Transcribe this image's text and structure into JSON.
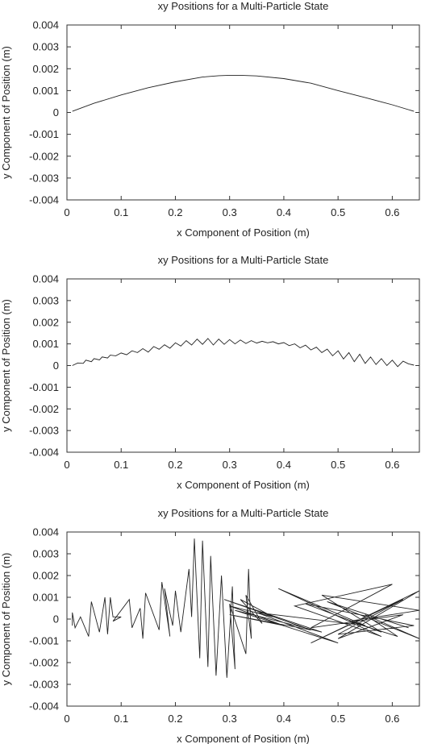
{
  "chart_data": [
    {
      "type": "line",
      "title": "xy Positions for a Multi-Particle State",
      "xlabel": "x Component of Position (m)",
      "ylabel": "y Component of Position (m)",
      "xlim": [
        0,
        0.65
      ],
      "ylim": [
        -0.004,
        0.004
      ],
      "xticks": [
        "0",
        "0.1",
        "0.2",
        "0.3",
        "0.4",
        "0.5",
        "0.6"
      ],
      "yticks": [
        "0.004",
        "0.003",
        "0.002",
        "0.001",
        "0",
        "-0.001",
        "-0.002",
        "-0.003",
        "-0.004"
      ],
      "grid": false,
      "series": [
        {
          "x": [
            0.01,
            0.05,
            0.1,
            0.15,
            0.2,
            0.25,
            0.28,
            0.3,
            0.32,
            0.35,
            0.4,
            0.45,
            0.5,
            0.55,
            0.6,
            0.64
          ],
          "y": [
            5e-05,
            0.00042,
            0.0008,
            0.00113,
            0.0014,
            0.00162,
            0.00168,
            0.0017,
            0.0017,
            0.00167,
            0.00155,
            0.00134,
            0.001,
            0.00068,
            0.00035,
            5e-05
          ]
        }
      ]
    },
    {
      "type": "line",
      "title": "xy Positions for a Multi-Particle State",
      "xlabel": "x Component of Position (m)",
      "ylabel": "y Component of Position (m)",
      "xlim": [
        0,
        0.65
      ],
      "ylim": [
        -0.004,
        0.004
      ],
      "xticks": [
        "0",
        "0.1",
        "0.2",
        "0.3",
        "0.4",
        "0.5",
        "0.6"
      ],
      "yticks": [
        "0.004",
        "0.003",
        "0.002",
        "0.001",
        "0",
        "-0.001",
        "-0.002",
        "-0.003",
        "-0.004"
      ],
      "grid": false,
      "series": [
        {
          "x": [
            0.01,
            0.02,
            0.03,
            0.035,
            0.045,
            0.05,
            0.06,
            0.065,
            0.075,
            0.08,
            0.09,
            0.1,
            0.11,
            0.12,
            0.13,
            0.14,
            0.15,
            0.16,
            0.17,
            0.18,
            0.19,
            0.2,
            0.21,
            0.22,
            0.23,
            0.24,
            0.25,
            0.26,
            0.27,
            0.28,
            0.29,
            0.3,
            0.31,
            0.32,
            0.33,
            0.34,
            0.35,
            0.36,
            0.37,
            0.38,
            0.39,
            0.4,
            0.41,
            0.42,
            0.43,
            0.44,
            0.45,
            0.46,
            0.47,
            0.48,
            0.49,
            0.5,
            0.51,
            0.52,
            0.53,
            0.54,
            0.55,
            0.56,
            0.57,
            0.58,
            0.59,
            0.6,
            0.61,
            0.62,
            0.63,
            0.64
          ],
          "y": [
            0.0,
            0.00012,
            0.0001,
            0.00025,
            0.00018,
            0.00032,
            0.00026,
            0.0004,
            0.00035,
            0.00048,
            0.00045,
            0.00058,
            0.0005,
            0.00068,
            0.0006,
            0.00078,
            0.00062,
            0.00088,
            0.00075,
            0.00096,
            0.0008,
            0.00105,
            0.0009,
            0.00115,
            0.00095,
            0.00122,
            0.00098,
            0.00125,
            0.00095,
            0.00122,
            0.00098,
            0.0012,
            0.001,
            0.00118,
            0.00102,
            0.00115,
            0.00104,
            0.00112,
            0.00105,
            0.0011,
            0.001,
            0.00106,
            0.00092,
            0.001,
            0.00082,
            0.00094,
            0.00072,
            0.00085,
            0.0006,
            0.00076,
            0.00045,
            0.00068,
            0.0003,
            0.0006,
            0.00018,
            0.00052,
            0.0001,
            0.0004,
            5e-05,
            0.00032,
            0.0,
            0.00025,
            -5e-05,
            0.0002,
            8e-05,
            2e-05
          ]
        }
      ]
    },
    {
      "type": "line",
      "title": "xy Positions for a Multi-Particle State",
      "xlabel": "x Component of Position (m)",
      "ylabel": "y Component of Position (m)",
      "xlim": [
        0,
        0.65
      ],
      "ylim": [
        -0.004,
        0.004
      ],
      "xticks": [
        "0",
        "0.1",
        "0.2",
        "0.3",
        "0.4",
        "0.5",
        "0.6"
      ],
      "yticks": [
        "0.004",
        "0.003",
        "0.002",
        "0.001",
        "0",
        "-0.001",
        "-0.002",
        "-0.003",
        "-0.004"
      ],
      "grid": false,
      "series": [
        {
          "x": [
            0.01,
            0.01,
            0.015,
            0.025,
            0.04,
            0.045,
            0.06,
            0.07,
            0.075,
            0.08,
            0.085,
            0.1,
            0.085,
            0.115,
            0.12,
            0.135,
            0.14,
            0.145,
            0.17,
            0.175,
            0.19,
            0.18,
            0.195,
            0.2,
            0.21,
            0.225,
            0.23,
            0.235,
            0.245,
            0.25,
            0.26,
            0.265,
            0.275,
            0.285,
            0.295,
            0.305,
            0.31,
            0.3,
            0.33,
            0.335,
            0.34,
            0.33,
            0.36,
            0.32,
            0.38,
            0.3,
            0.4,
            0.3,
            0.45,
            0.29,
            0.47,
            0.31,
            0.5,
            0.35,
            0.55,
            0.39,
            0.58,
            0.42,
            0.6,
            0.45,
            0.62,
            0.5,
            0.65,
            0.45,
            0.62,
            0.5,
            0.64,
            0.44,
            0.58,
            0.47,
            0.65,
            0.52,
            0.61,
            0.55,
            0.65,
            0.48,
            0.63
          ],
          "y": [
            -0.0003,
            0.0003,
            -0.0004,
            0.0001,
            -0.0008,
            0.0008,
            -0.0006,
            0.001,
            -0.0007,
            0.001,
            0.0001,
            0.0001,
            -0.0001,
            0.0009,
            -0.0004,
            0.0005,
            -0.0009,
            0.0012,
            -0.0005,
            0.0017,
            -0.0008,
            0.0014,
            -0.0003,
            0.0013,
            -0.0006,
            0.0023,
            0.0001,
            0.0037,
            -0.0018,
            0.0036,
            -0.0022,
            0.0029,
            -0.0026,
            0.002,
            -0.0027,
            0.0015,
            -0.0023,
            0.0007,
            -0.0016,
            0.0023,
            -0.0009,
            0.0011,
            -0.0002,
            0.0009,
            0.0001,
            0.0006,
            -0.0003,
            0.0002,
            -0.0005,
            0.0009,
            -0.0006,
            0.0004,
            -0.0011,
            0.0003,
            -0.0003,
            0.0014,
            -0.0008,
            0.0006,
            0.0016,
            -0.0004,
            0.0002,
            -0.0009,
            0.0013,
            -0.0011,
            0.0009,
            -0.0007,
            -0.0003,
            0.0007,
            -0.0006,
            0.0011,
            0.0004,
            -0.0001,
            -0.0008,
            0.0002,
            -0.0009,
            0.0008,
            -0.0004
          ]
        }
      ]
    }
  ]
}
